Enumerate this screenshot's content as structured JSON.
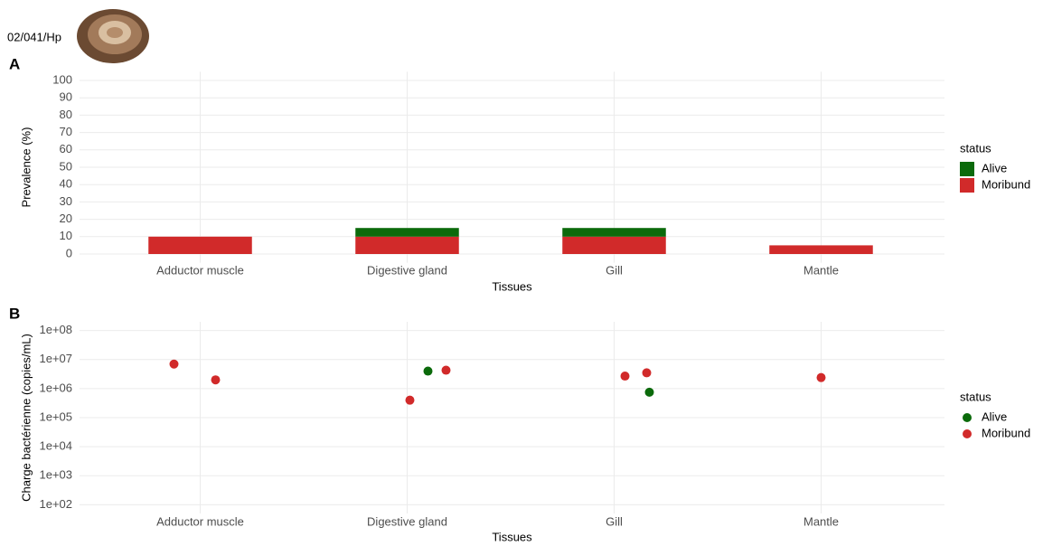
{
  "header": {
    "id": "02/041/Hp"
  },
  "chart_data": [
    {
      "type": "bar",
      "stacked": true,
      "panel": "A",
      "ylabel": "Prevalence (%)",
      "xlabel": "Tissues",
      "categories": [
        "Adductor muscle",
        "Digestive gland",
        "Gill",
        "Mantle"
      ],
      "series": [
        {
          "name": "Alive",
          "color": "#0b6a0b",
          "values": [
            0,
            5,
            5,
            0
          ]
        },
        {
          "name": "Moribund",
          "color": "#d12a2a",
          "values": [
            10,
            10,
            10,
            5
          ]
        }
      ],
      "ylim": [
        -5,
        105
      ],
      "yticks": [
        0,
        10,
        20,
        30,
        40,
        50,
        60,
        70,
        80,
        90,
        100
      ],
      "grid": true,
      "legend_title": "status",
      "legend": "right"
    },
    {
      "type": "scatter",
      "panel": "B",
      "log_y": true,
      "ylabel": "Charge bactérienne (copies/mL)",
      "xlabel": "Tissues",
      "categories": [
        "Adductor muscle",
        "Digestive gland",
        "Gill",
        "Mantle"
      ],
      "series": [
        {
          "name": "Alive",
          "color": "#0b6a0b",
          "x": [
            "Digestive gland",
            "Gill"
          ],
          "values": [
            4000000,
            750000
          ]
        },
        {
          "name": "Moribund",
          "color": "#d12a2a",
          "x": [
            "Adductor muscle",
            "Adductor muscle",
            "Digestive gland",
            "Digestive gland",
            "Gill",
            "Gill",
            "Mantle"
          ],
          "values": [
            7000000,
            2000000,
            4300000,
            400000,
            3500000,
            2700000,
            2400000
          ]
        }
      ],
      "ylim": [
        50,
        200000000
      ],
      "yticks": [
        {
          "value": 100,
          "label": "1e+02"
        },
        {
          "value": 1000,
          "label": "1e+03"
        },
        {
          "value": 10000,
          "label": "1e+04"
        },
        {
          "value": 100000,
          "label": "1e+05"
        },
        {
          "value": 1000000,
          "label": "1e+06"
        },
        {
          "value": 10000000,
          "label": "1e+07"
        },
        {
          "value": 100000000,
          "label": "1e+08"
        }
      ],
      "grid": true,
      "legend_title": "status",
      "legend": "right"
    }
  ]
}
